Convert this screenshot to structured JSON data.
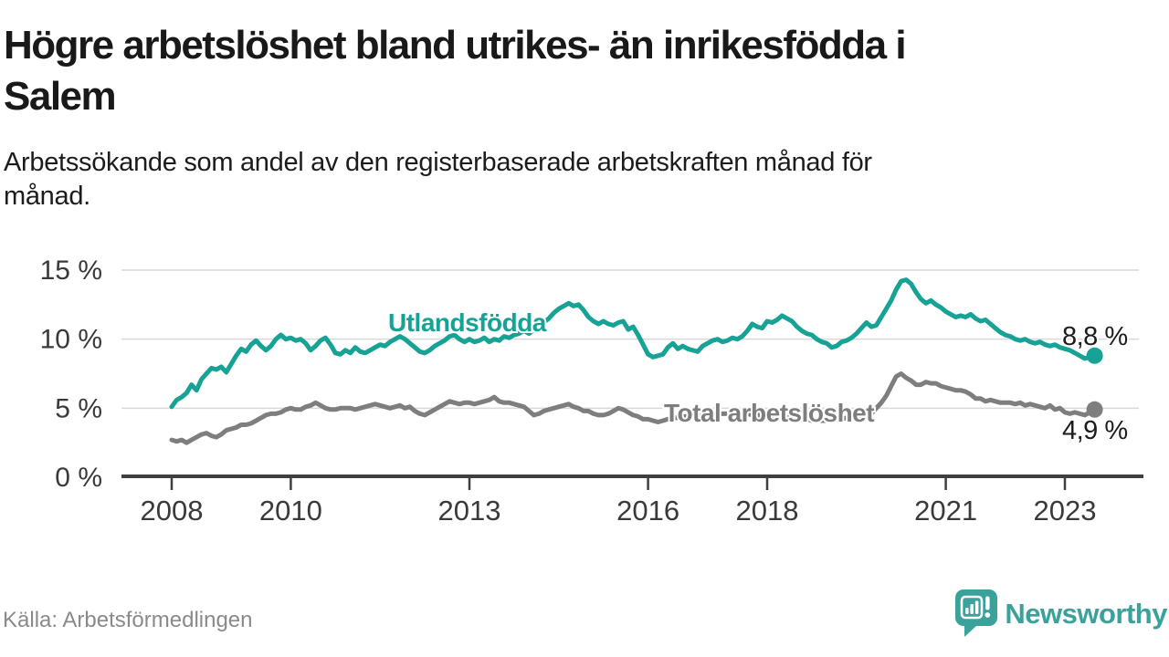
{
  "title_lines": [
    "Högre arbetslöshet bland utrikes- än inrikesfödda i",
    "Salem"
  ],
  "subtitle_lines": [
    "Arbetssökande som andel av den registerbaserade arbetskraften månad för",
    "månad."
  ],
  "source": "Källa: Arbetsförmedlingen",
  "logo": {
    "text": "Newsworthy",
    "icon": "speech-bubble-bar-chart-icon",
    "color": "#3aa29b"
  },
  "chart_data": {
    "type": "line",
    "title": "Högre arbetslöshet bland utrikes- än inrikesfödda i Salem",
    "subtitle": "Arbetssökande som andel av den registerbaserade arbetskraften månad för månad.",
    "source": "Källa: Arbetsförmedlingen",
    "x_start_year": 2008,
    "x_start_month": 1,
    "x_end_year": 2023,
    "x_end_month": 7,
    "x_axis": {
      "tick_years": [
        2008,
        2010,
        2013,
        2016,
        2018,
        2021,
        2023
      ]
    },
    "y_axis": {
      "ticks": [
        {
          "label": "15 %",
          "value": 15
        },
        {
          "label": "10 %",
          "value": 10
        },
        {
          "label": "5 %",
          "value": 5
        },
        {
          "label": "0 %",
          "value": 0
        }
      ],
      "ylim": [
        0,
        16
      ]
    },
    "grid": "horizontal-only",
    "legend": "inline-labels",
    "colors": {
      "accent_teal": "#16a294",
      "neutral_gray": "#7e7e7e",
      "grid": "#d9d9d9",
      "axis": "#3f3f3f"
    },
    "series": [
      {
        "name": "Utlandsfödda",
        "color": "#16a294",
        "end_label": "8,8 %",
        "end_value": 8.8,
        "values": [
          5.1,
          5.6,
          5.8,
          6.1,
          6.7,
          6.3,
          7.1,
          7.5,
          7.9,
          7.8,
          8.0,
          7.6,
          8.2,
          8.8,
          9.3,
          9.1,
          9.6,
          9.9,
          9.5,
          9.2,
          9.5,
          10.0,
          10.3,
          10.0,
          10.1,
          9.9,
          10.0,
          9.7,
          9.2,
          9.5,
          9.9,
          10.1,
          9.6,
          9.0,
          8.9,
          9.2,
          9.0,
          9.4,
          9.1,
          9.0,
          9.2,
          9.4,
          9.6,
          9.5,
          9.8,
          10.0,
          10.2,
          10.0,
          9.7,
          9.4,
          9.1,
          9.0,
          9.2,
          9.5,
          9.7,
          9.9,
          10.2,
          10.3,
          10.0,
          9.8,
          10.0,
          9.8,
          9.9,
          10.1,
          9.8,
          10.0,
          9.9,
          10.2,
          10.1,
          10.3,
          10.4,
          10.6,
          10.4,
          10.7,
          11.0,
          11.2,
          11.5,
          11.9,
          12.2,
          12.4,
          12.6,
          12.4,
          12.5,
          12.1,
          11.6,
          11.3,
          11.1,
          11.3,
          11.1,
          11.0,
          11.2,
          11.3,
          10.7,
          10.9,
          10.3,
          9.6,
          8.9,
          8.7,
          8.8,
          8.9,
          9.4,
          9.7,
          9.3,
          9.5,
          9.3,
          9.2,
          9.1,
          9.5,
          9.7,
          9.9,
          10.0,
          9.8,
          9.9,
          10.1,
          10.0,
          10.2,
          10.6,
          11.1,
          10.9,
          10.8,
          11.3,
          11.2,
          11.4,
          11.7,
          11.5,
          11.3,
          10.9,
          10.6,
          10.4,
          10.3,
          10.0,
          9.8,
          9.7,
          9.4,
          9.5,
          9.8,
          9.9,
          10.1,
          10.4,
          10.8,
          11.2,
          10.9,
          11.0,
          11.6,
          12.2,
          12.8,
          13.6,
          14.2,
          14.3,
          14.0,
          13.4,
          12.9,
          12.6,
          12.8,
          12.5,
          12.3,
          12.0,
          11.8,
          11.6,
          11.7,
          11.6,
          11.8,
          11.5,
          11.3,
          11.4,
          11.1,
          10.8,
          10.5,
          10.3,
          10.2,
          10.0,
          9.9,
          10.0,
          9.8,
          9.7,
          9.8,
          9.6,
          9.5,
          9.6,
          9.4,
          9.3,
          9.2,
          9.0,
          8.8,
          8.6,
          8.7,
          8.8
        ]
      },
      {
        "name": "Total arbetslöshet",
        "color": "#7e7e7e",
        "end_label": "4,9 %",
        "end_value": 4.9,
        "values": [
          2.7,
          2.6,
          2.7,
          2.5,
          2.7,
          2.9,
          3.1,
          3.2,
          3.0,
          2.9,
          3.1,
          3.4,
          3.5,
          3.6,
          3.8,
          3.8,
          3.9,
          4.1,
          4.3,
          4.5,
          4.6,
          4.6,
          4.7,
          4.9,
          5.0,
          4.9,
          4.9,
          5.1,
          5.2,
          5.4,
          5.2,
          5.0,
          4.9,
          4.9,
          5.0,
          5.0,
          5.0,
          4.9,
          5.0,
          5.1,
          5.2,
          5.3,
          5.2,
          5.1,
          5.0,
          5.1,
          5.2,
          5.0,
          5.1,
          4.8,
          4.6,
          4.5,
          4.7,
          4.9,
          5.1,
          5.3,
          5.5,
          5.4,
          5.3,
          5.4,
          5.4,
          5.3,
          5.4,
          5.5,
          5.6,
          5.8,
          5.5,
          5.4,
          5.4,
          5.3,
          5.2,
          5.1,
          4.8,
          4.5,
          4.6,
          4.8,
          4.9,
          5.0,
          5.1,
          5.2,
          5.3,
          5.1,
          5.0,
          4.8,
          4.8,
          4.6,
          4.5,
          4.5,
          4.6,
          4.8,
          5.0,
          4.9,
          4.7,
          4.5,
          4.4,
          4.2,
          4.2,
          4.1,
          4.0,
          4.1,
          4.2,
          4.3,
          4.3,
          4.4,
          4.4,
          4.5,
          4.5,
          4.5,
          4.5,
          4.5,
          4.6,
          4.6,
          4.6,
          4.7,
          4.7,
          4.6,
          4.6,
          4.5,
          4.5,
          4.5,
          4.5,
          4.4,
          4.4,
          4.3,
          4.3,
          4.3,
          4.2,
          4.2,
          4.2,
          4.1,
          4.1,
          4.1,
          4.1,
          4.1,
          4.2,
          4.2,
          4.3,
          4.3,
          4.4,
          4.4,
          4.5,
          4.6,
          5.0,
          5.4,
          5.9,
          6.6,
          7.3,
          7.5,
          7.2,
          7.0,
          6.7,
          6.7,
          6.9,
          6.8,
          6.8,
          6.6,
          6.5,
          6.4,
          6.3,
          6.3,
          6.2,
          6.0,
          5.7,
          5.7,
          5.5,
          5.6,
          5.5,
          5.4,
          5.4,
          5.4,
          5.3,
          5.4,
          5.2,
          5.3,
          5.2,
          5.1,
          5.0,
          5.2,
          4.9,
          5.0,
          4.7,
          4.6,
          4.7,
          4.6,
          4.5,
          4.7,
          4.9
        ]
      }
    ]
  }
}
